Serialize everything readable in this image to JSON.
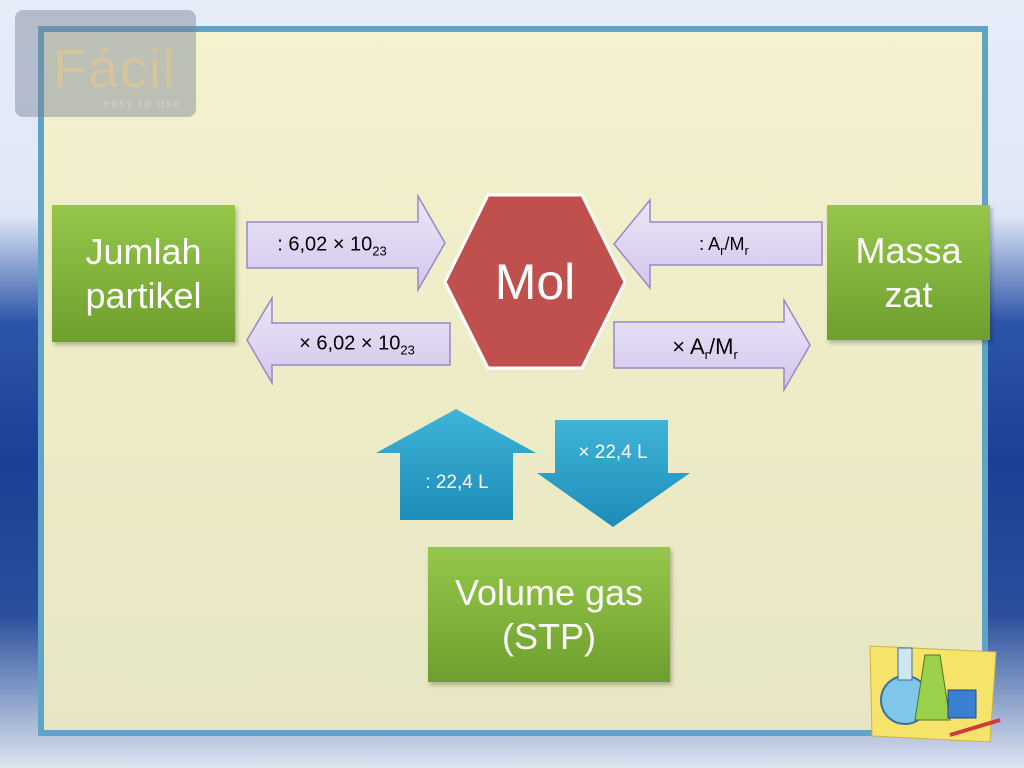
{
  "logo": {
    "title": "Fácil",
    "tagline": "easy to use"
  },
  "center": {
    "label": "Mol",
    "color": "#c0504d"
  },
  "nodes": {
    "particles": "Jumlah partikel",
    "mass": "Massa zat",
    "volume_line1": "Volume gas",
    "volume_line2": "(STP)"
  },
  "arrows": {
    "to_mol_from_particles": {
      "prefix": ": 6,02 × 10",
      "sub": "23"
    },
    "from_mol_to_particles": {
      "prefix": "× 6,02 × 10",
      "sub": "23"
    },
    "to_mol_from_mass": {
      "prefix": ": A",
      "sub1": "r",
      "mid": "/M",
      "sub2": "r"
    },
    "from_mol_to_mass": {
      "prefix": "× A",
      "sub1": "r",
      "mid": "/M",
      "sub2": "r"
    },
    "to_mol_from_volume": ": 22,4 L",
    "from_mol_to_volume": "× 22,4 L"
  },
  "colors": {
    "node": "#7fb23a",
    "arrow_fill": "#ddd3f0",
    "vertical_arrow": "#2aa0c8",
    "frame": "#5fa3c6"
  }
}
